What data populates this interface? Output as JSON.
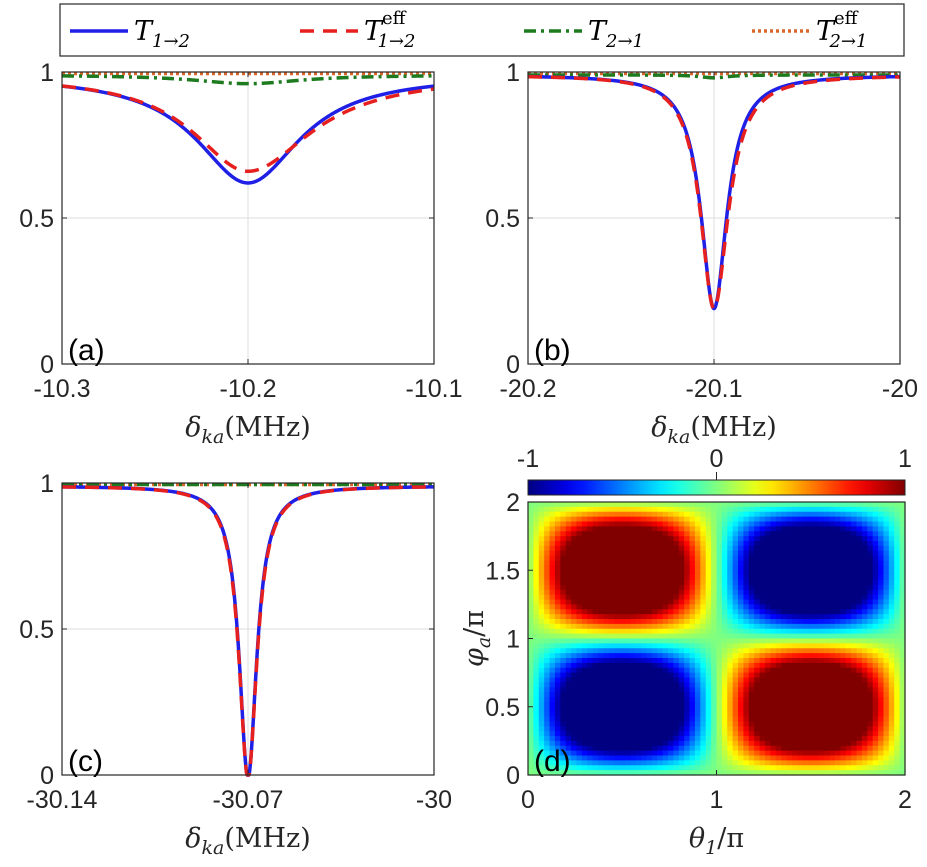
{
  "legend": {
    "entries": [
      {
        "main": "T",
        "sub": "1→2",
        "sup": "",
        "color": "#1f1fe6",
        "dash": "solid"
      },
      {
        "main": "T",
        "sub": "1→2",
        "sup": "eff",
        "color": "#e61f1f",
        "dash": "dashed"
      },
      {
        "main": "T",
        "sub": "2→1",
        "sup": "",
        "color": "#1e7a1e",
        "dash": "dashdot"
      },
      {
        "main": "T",
        "sub": "2→1",
        "sup": "eff",
        "color": "#d9662a",
        "dash": "dotted"
      }
    ]
  },
  "chart_data": [
    {
      "id": "a",
      "type": "line",
      "panel_label": "(a)",
      "xlabel": {
        "sym": "δ",
        "sub": "ka",
        "unit": "(MHz)"
      },
      "xlim": [
        -10.3,
        -10.1
      ],
      "ylim": [
        0,
        1
      ],
      "xticks": [
        -10.3,
        -10.2,
        -10.1
      ],
      "xtick_labels": [
        "-10.3",
        "-10.2",
        "-10.1"
      ],
      "yticks": [
        0,
        0.5,
        1
      ],
      "ytick_labels": [
        "0",
        "0.5",
        "1"
      ],
      "grid": true,
      "series": [
        {
          "name": "T_{1→2}",
          "shape": "lorentz",
          "center": -10.2,
          "width": 0.034,
          "depth": 0.37,
          "asym": 0
        },
        {
          "name": "T^{eff}_{1→2}",
          "shape": "lorentz",
          "center": -10.2,
          "width": 0.036,
          "depth": 0.33,
          "asym": 0.05
        },
        {
          "name": "T_{2→1}",
          "shape": "lorentz",
          "center": -10.2,
          "width": 0.035,
          "depth": 0.03,
          "asym": 0
        },
        {
          "name": "T^{eff}_{2→1}",
          "shape": "flat",
          "value": 0.995
        }
      ]
    },
    {
      "id": "b",
      "type": "line",
      "panel_label": "(b)",
      "xlabel": {
        "sym": "δ",
        "sub": "ka",
        "unit": "(MHz)"
      },
      "xlim": [
        -20.2,
        -20.0
      ],
      "ylim": [
        0,
        1
      ],
      "xticks": [
        -20.2,
        -20.1,
        -20.0
      ],
      "xtick_labels": [
        "-20.2",
        "-20.1",
        "-20"
      ],
      "yticks": [
        0,
        0.5,
        1
      ],
      "ytick_labels": [
        "0",
        "0.5",
        "1"
      ],
      "grid": true,
      "series": [
        {
          "name": "T_{1→2}",
          "shape": "lorentz",
          "center": -20.1,
          "width": 0.0085,
          "depth": 0.8,
          "asym": 0
        },
        {
          "name": "T^{eff}_{1→2}",
          "shape": "lorentz",
          "center": -20.1,
          "width": 0.0088,
          "depth": 0.8,
          "asym": 0.02
        },
        {
          "name": "T_{2→1}",
          "shape": "lorentz",
          "center": -20.1,
          "width": 0.009,
          "depth": 0.01,
          "asym": 0
        },
        {
          "name": "T^{eff}_{2→1}",
          "shape": "flat",
          "value": 0.995
        }
      ]
    },
    {
      "id": "c",
      "type": "line",
      "panel_label": "(c)",
      "xlabel": {
        "sym": "δ",
        "sub": "ka",
        "unit": "(MHz)"
      },
      "xlim": [
        -30.14,
        -30.0
      ],
      "ylim": [
        0,
        1
      ],
      "xticks": [
        -30.14,
        -30.07,
        -30.0
      ],
      "xtick_labels": [
        "-30.14",
        "-30.07",
        "-30"
      ],
      "yticks": [
        0,
        0.5,
        1
      ],
      "ytick_labels": [
        "0",
        "0.5",
        "1"
      ],
      "grid": true,
      "series": [
        {
          "name": "T_{1→2}",
          "shape": "lorentz",
          "center": -30.07,
          "width": 0.004,
          "depth": 1.0,
          "asym": 0
        },
        {
          "name": "T^{eff}_{1→2}",
          "shape": "lorentz",
          "center": -30.07,
          "width": 0.0041,
          "depth": 1.0,
          "asym": 0
        },
        {
          "name": "T_{2→1}",
          "shape": "flat",
          "value": 0.995
        },
        {
          "name": "T^{eff}_{2→1}",
          "shape": "flat",
          "value": 0.995
        }
      ]
    },
    {
      "id": "d",
      "type": "heatmap",
      "panel_label": "(d)",
      "xlabel": {
        "sym": "θ",
        "sub": "1",
        "unit": "/π"
      },
      "ylabel": {
        "sym": "φ",
        "sub": "a",
        "unit": "/π"
      },
      "xlim": [
        0,
        2
      ],
      "ylim": [
        0,
        2
      ],
      "xticks": [
        0,
        1,
        2
      ],
      "xtick_labels": [
        "0",
        "1",
        "2"
      ],
      "yticks": [
        0,
        0.5,
        1,
        1.5,
        2
      ],
      "ytick_labels": [
        "0",
        "0.5",
        "1",
        "1.5",
        "2"
      ],
      "colorbar": {
        "range": [
          -1,
          1
        ],
        "ticks": [
          -1,
          0,
          1
        ],
        "tick_labels": [
          "-1",
          "0",
          "1"
        ],
        "colormap": "jet"
      },
      "function": "-sin(πθ)·sin(πφ), clipped with saturation"
    }
  ]
}
